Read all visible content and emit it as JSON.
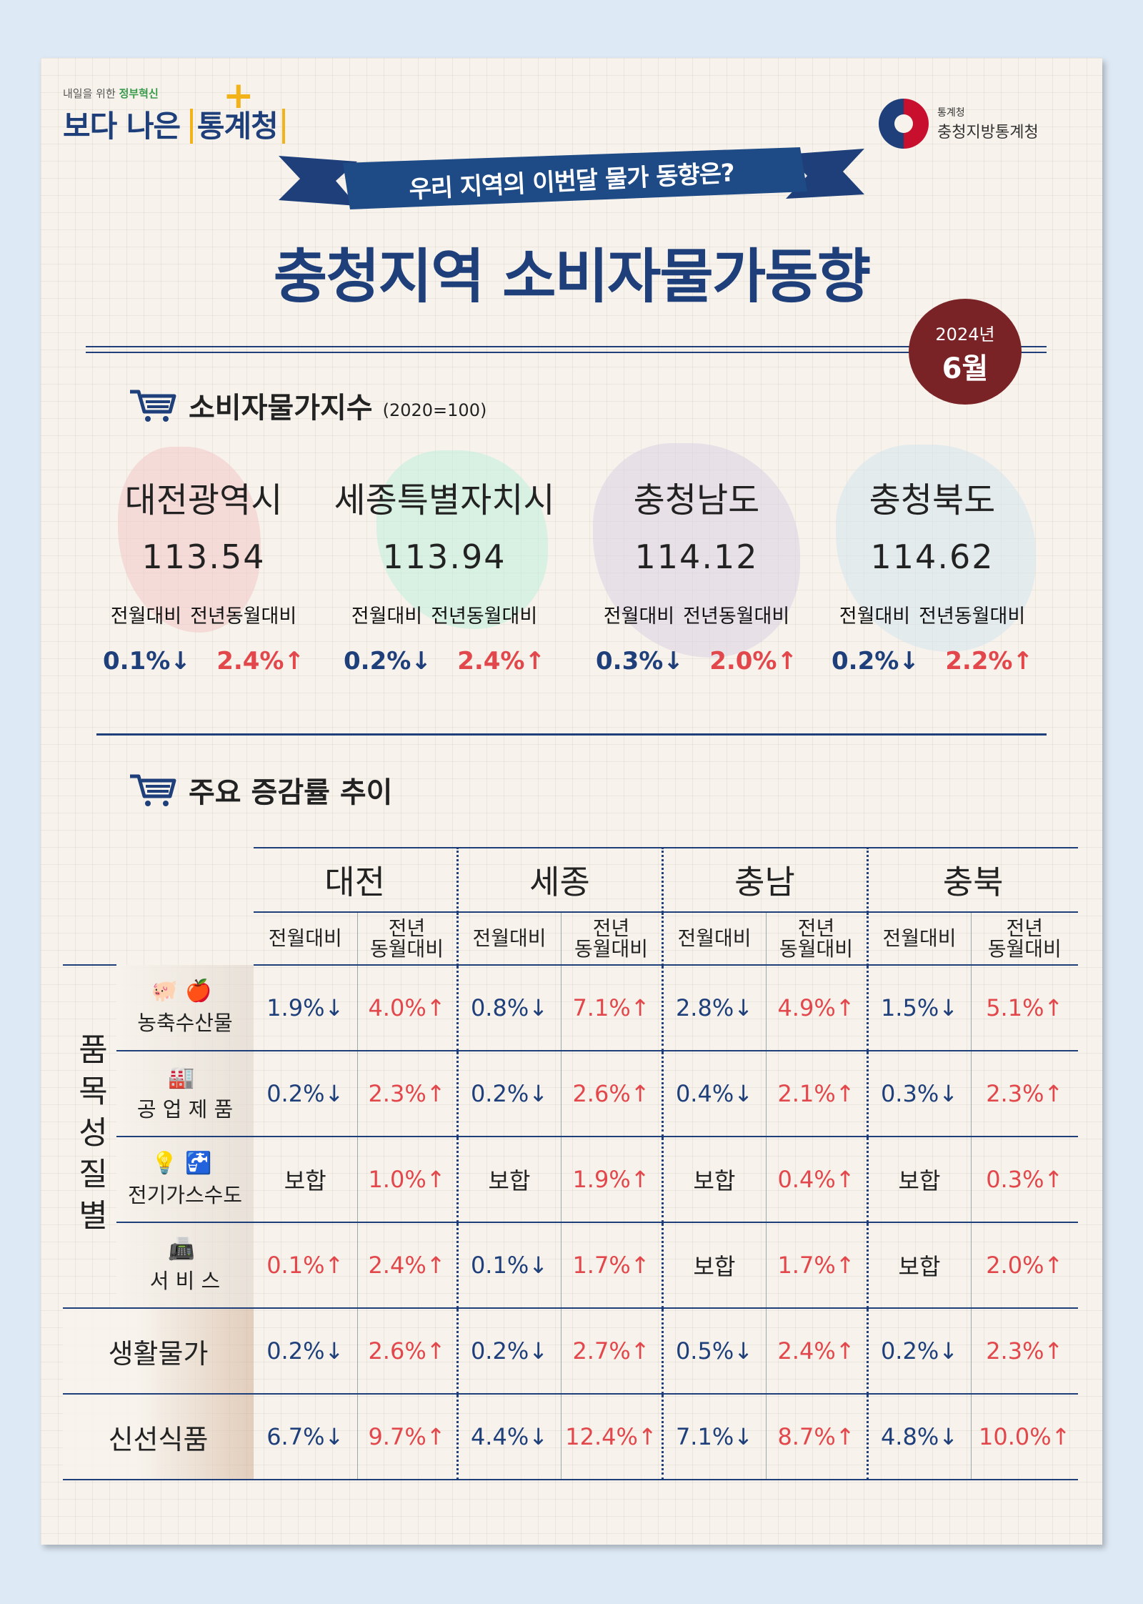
{
  "header": {
    "brand_sub_prefix": "내일을 위한",
    "brand_sub_highlight": "정부혁신",
    "brand_main_prefix": "보다 나은",
    "brand_main_highlight": "통계청",
    "brand_plus": "+",
    "agency_small": "통계청",
    "agency_big": "충청지방통계청",
    "ribbon_text": "우리 지역의 이번달 물가 동향은?",
    "title": "충청지역 소비자물가동향",
    "badge_year": "2024년",
    "badge_month": "6월"
  },
  "section1": {
    "icon": "cart-icon",
    "title": "소비자물가지수",
    "note": "(2020=100)",
    "regions": [
      {
        "name": "대전광역시",
        "index": "113.54",
        "label_mom": "전월대비",
        "label_yoy": "전년동월대비",
        "mom": "0.1%↓",
        "yoy": "2.4%↑",
        "map_color": "#f2c6c6"
      },
      {
        "name": "세종특별자치시",
        "index": "113.94",
        "label_mom": "전월대비",
        "label_yoy": "전년동월대비",
        "mom": "0.2%↓",
        "yoy": "2.4%↑",
        "map_color": "#bfeedd"
      },
      {
        "name": "충청남도",
        "index": "114.12",
        "label_mom": "전월대비",
        "label_yoy": "전년동월대비",
        "mom": "0.3%↓",
        "yoy": "2.0%↑",
        "map_color": "#ddd0e3"
      },
      {
        "name": "충청북도",
        "index": "114.62",
        "label_mom": "전월대비",
        "label_yoy": "전년동월대비",
        "mom": "0.2%↓",
        "yoy": "2.2%↑",
        "map_color": "#d6e4ee"
      }
    ]
  },
  "section2": {
    "icon": "cart-icon",
    "title": "주요 증감률 추이",
    "regions": [
      "대전",
      "세종",
      "충남",
      "충북"
    ],
    "sub_mom": "전월대비",
    "sub_yoy_line1": "전년",
    "sub_yoy_line2": "동월대비",
    "category_vertical": "품목성질별",
    "rows": [
      {
        "label": "농축수산물",
        "icons": "🐖🍎",
        "values": [
          "1.9%↓",
          "4.0%↑",
          "0.8%↓",
          "7.1%↑",
          "2.8%↓",
          "4.9%↑",
          "1.5%↓",
          "5.1%↑"
        ]
      },
      {
        "label": "공 업 제 품",
        "icons": "🏭",
        "values": [
          "0.2%↓",
          "2.3%↑",
          "0.2%↓",
          "2.6%↑",
          "0.4%↓",
          "2.1%↑",
          "0.3%↓",
          "2.3%↑"
        ]
      },
      {
        "label": "전기가스수도",
        "icons": "💡🚰",
        "values": [
          "보합",
          "1.0%↑",
          "보합",
          "1.9%↑",
          "보합",
          "0.4%↑",
          "보합",
          "0.3%↑"
        ]
      },
      {
        "label": "서 비 스",
        "icons": "📠",
        "values": [
          "0.1%↑",
          "2.4%↑",
          "0.1%↓",
          "1.7%↑",
          "보합",
          "1.7%↑",
          "보합",
          "2.0%↑"
        ]
      }
    ],
    "extra_rows": [
      {
        "label": "생활물가",
        "values": [
          "0.2%↓",
          "2.6%↑",
          "0.2%↓",
          "2.7%↑",
          "0.5%↓",
          "2.4%↑",
          "0.2%↓",
          "2.3%↑"
        ]
      },
      {
        "label": "신선식품",
        "values": [
          "6.7%↓",
          "9.7%↑",
          "4.4%↓",
          "12.4%↑",
          "7.1%↓",
          "8.7%↑",
          "4.8%↓",
          "10.0%↑"
        ]
      }
    ]
  },
  "colors": {
    "navy": "#1e3f7a",
    "red": "#e2474b",
    "badge": "#7a2326",
    "accent": "#f2b31a"
  }
}
